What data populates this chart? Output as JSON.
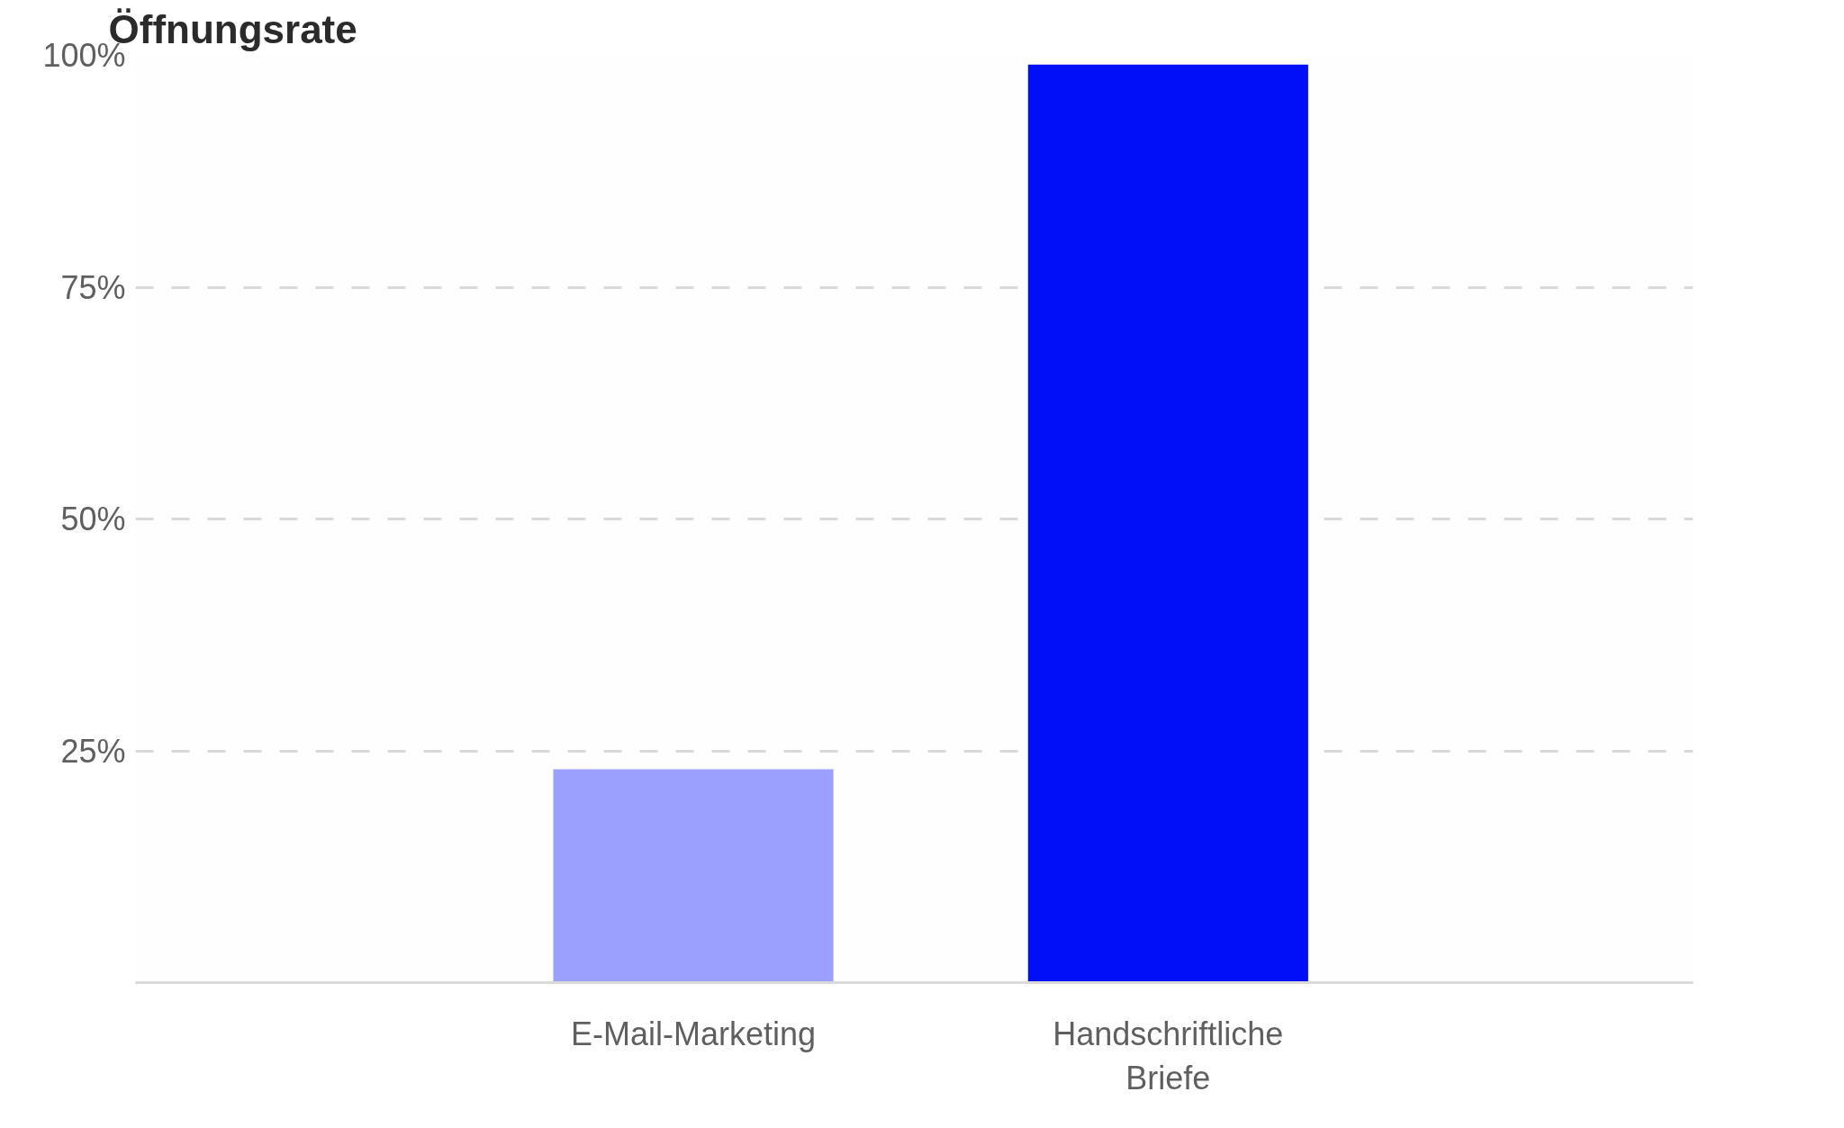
{
  "chart_data": {
    "type": "bar",
    "title": "Öffnungsrate",
    "categories": [
      "E-Mail-Marketing",
      "Handschriftliche\nBriefe"
    ],
    "values": [
      23,
      99
    ],
    "colors": [
      "#9b9ffd",
      "#000ff7"
    ],
    "ylim": [
      0,
      100
    ],
    "yticks": [
      {
        "value": 0,
        "label": null
      },
      {
        "value": 25,
        "label": "25%"
      },
      {
        "value": 50,
        "label": "50%"
      },
      {
        "value": 75,
        "label": "75%"
      },
      {
        "value": 100,
        "label": "100%"
      }
    ],
    "grid": "y"
  }
}
